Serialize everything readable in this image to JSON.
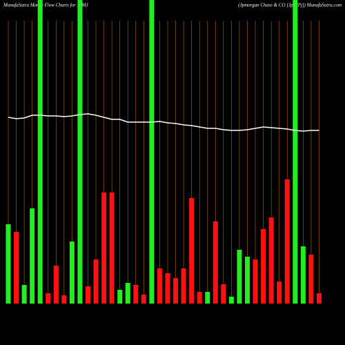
{
  "chart_data": {
    "type": "bar",
    "title": "MunafaSutra  Money Flow  Charts for JPMJ",
    "subtitle": "(Jpmorgan  Chase  & CO [Jpm/Pj])  MunafaSutra.com",
    "categories": [
      null,
      null,
      null,
      null,
      null,
      null,
      null,
      null,
      null,
      null,
      null,
      null,
      null,
      null,
      null,
      null,
      null,
      null,
      null,
      null,
      null,
      null,
      null,
      null,
      null,
      null,
      null,
      null,
      null,
      null,
      null,
      null,
      null,
      null,
      null,
      null,
      null,
      null,
      null,
      null
    ],
    "values": [
      115,
      104,
      27,
      138,
      440,
      15,
      55,
      12,
      90,
      440,
      25,
      64,
      161,
      161,
      20,
      30,
      27,
      13,
      440,
      51,
      44,
      37,
      51,
      153,
      17,
      17,
      119,
      28,
      10,
      78,
      68,
      64,
      108,
      125,
      32,
      180,
      440,
      83,
      71,
      15
    ],
    "colors": [
      "#22ee22",
      "#ff1111",
      "#22ee22",
      "#22ee22",
      "#22ee22",
      "#ff1111",
      "#ff1111",
      "#ff1111",
      "#22ee22",
      "#22ee22",
      "#ff1111",
      "#ff1111",
      "#ff1111",
      "#ff1111",
      "#22ee22",
      "#22ee22",
      "#ff1111",
      "#ff1111",
      "#22ee22",
      "#ff1111",
      "#ff1111",
      "#ff1111",
      "#ff1111",
      "#ff1111",
      "#ff1111",
      "#22ee22",
      "#ff1111",
      "#ff1111",
      "#22ee22",
      "#22ee22",
      "#22ee22",
      "#ff1111",
      "#ff1111",
      "#ff1111",
      "#ff1111",
      "#ff1111",
      "#22ee22",
      "#22ee22",
      "#ff1111",
      "#ff1111"
    ],
    "ylim": [
      0,
      440
    ],
    "line": {
      "color": "#ffffff",
      "values": [
        270,
        268,
        269,
        273,
        273,
        272,
        272,
        271,
        272,
        274,
        275,
        273,
        270,
        267,
        267,
        263,
        263,
        263,
        263,
        264,
        262,
        261,
        259,
        258,
        256,
        254,
        254,
        252,
        251,
        251,
        252,
        254,
        256,
        255,
        254,
        253,
        251,
        250,
        251,
        251
      ]
    },
    "y2lim": [
      0,
      440
    ],
    "grid_color": "#b8650a"
  }
}
